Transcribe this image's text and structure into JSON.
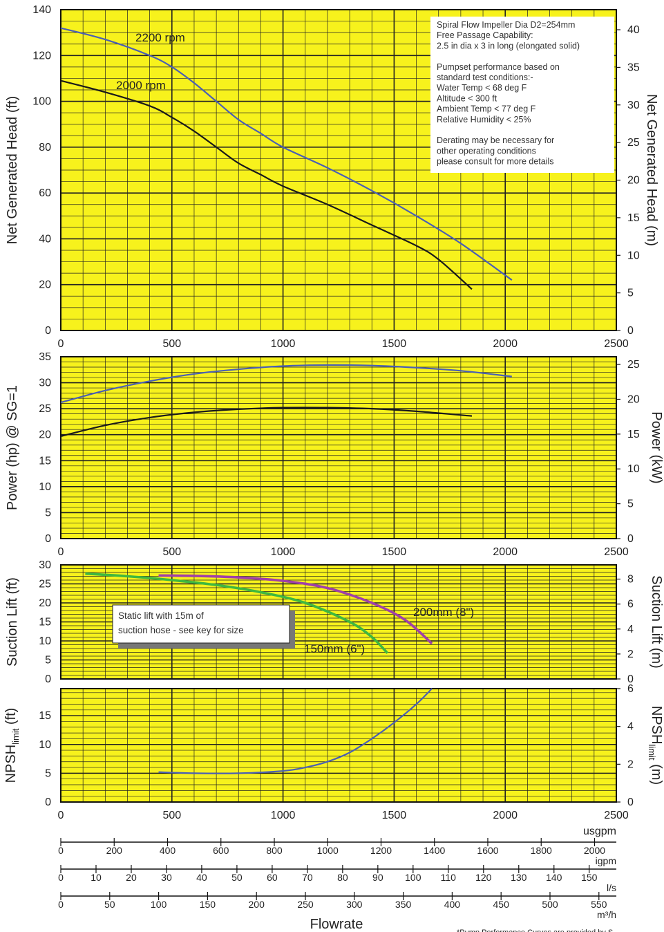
{
  "chart_data": [
    {
      "id": "head",
      "type": "line",
      "xlim": [
        0,
        2500
      ],
      "ylim": [
        0,
        140
      ],
      "y2lim": [
        0,
        42.67
      ],
      "x_ticks": [
        "0",
        "500",
        "1000",
        "1500",
        "2000",
        "2500"
      ],
      "y_ticks": [
        "0",
        "20",
        "40",
        "60",
        "80",
        "100",
        "120",
        "140"
      ],
      "y2_ticks": [
        "0",
        "5",
        "10",
        "15",
        "20",
        "25",
        "30",
        "35",
        "40"
      ],
      "ylabel": "Net Generated Head  (ft)",
      "y2label": "Net Generated Head (m)",
      "series": [
        {
          "name": "2200 rpm",
          "color": "#4a5fb5",
          "x": [
            0,
            200,
            400,
            500,
            600,
            700,
            800,
            900,
            1000,
            1200,
            1400,
            1600,
            1800,
            2030
          ],
          "y": [
            132,
            127,
            120,
            115,
            108,
            100,
            92,
            86,
            80,
            71,
            61,
            50,
            38,
            22
          ]
        },
        {
          "name": "2000 rpm",
          "color": "#1a1a1a",
          "x": [
            0,
            200,
            400,
            500,
            600,
            700,
            800,
            900,
            1000,
            1200,
            1400,
            1600,
            1700,
            1850
          ],
          "y": [
            109,
            104,
            98,
            93,
            87,
            80,
            73,
            68,
            63,
            55,
            46,
            37,
            31,
            18
          ]
        }
      ],
      "note_lines": [
        "Spiral Flow Impeller Dia D2=254mm",
        "Free Passage Capability:",
        "2.5 in dia x 3 in long (elongated solid)",
        "",
        "Pumpset performance based on",
        "standard test conditions:-",
        "Water Temp < 68 deg F",
        "Altitude < 300 ft",
        "Ambient Temp < 77 deg F",
        "Relative Humidity < 25%",
        "",
        "Derating may be necessary for",
        "other operating conditions",
        "please consult for more details"
      ]
    },
    {
      "id": "power",
      "type": "line",
      "xlim": [
        0,
        2500
      ],
      "ylim": [
        0,
        35
      ],
      "y2lim": [
        0,
        26.1
      ],
      "x_ticks": [
        "0",
        "500",
        "1000",
        "1500",
        "2000",
        "2500"
      ],
      "y_ticks": [
        "0",
        "5",
        "10",
        "15",
        "20",
        "25",
        "30",
        "35"
      ],
      "y2_ticks": [
        "0",
        "5",
        "10",
        "15",
        "20",
        "25"
      ],
      "ylabel": "Power (hp) @ SG=1",
      "y2label": "Power (kW)",
      "series": [
        {
          "name": "2200 rpm",
          "color": "#4a5fb5",
          "x": [
            0,
            200,
            400,
            600,
            800,
            1000,
            1200,
            1400,
            1600,
            1800,
            2030
          ],
          "y": [
            26.2,
            28.5,
            30.3,
            31.7,
            32.6,
            33.2,
            33.4,
            33.3,
            32.9,
            32.3,
            31.2
          ]
        },
        {
          "name": "2000 rpm",
          "color": "#1a1a1a",
          "x": [
            0,
            200,
            400,
            600,
            800,
            1000,
            1200,
            1400,
            1600,
            1850
          ],
          "y": [
            19.7,
            21.8,
            23.3,
            24.3,
            24.9,
            25.2,
            25.2,
            25.0,
            24.5,
            23.6
          ]
        }
      ]
    },
    {
      "id": "suction",
      "type": "line",
      "xlim": [
        0,
        2500
      ],
      "ylim": [
        0,
        30
      ],
      "y2lim": [
        0,
        9.14
      ],
      "y_ticks": [
        "0",
        "5",
        "10",
        "15",
        "20",
        "25",
        "30"
      ],
      "y2_ticks": [
        "0",
        "2",
        "4",
        "6",
        "8"
      ],
      "ylabel": "Suction Lift  (ft)",
      "y2label": "Suction Lift (m)",
      "series": [
        {
          "name": "200mm (8\")",
          "color": "#a040a8",
          "x": [
            440,
            600,
            800,
            1000,
            1200,
            1400,
            1550,
            1670
          ],
          "y": [
            27.2,
            27.1,
            26.7,
            25.8,
            23.9,
            20.0,
            15.5,
            9.3
          ]
        },
        {
          "name": "150mm (6\")",
          "color": "#3fb83f",
          "x": [
            110,
            300,
            500,
            700,
            900,
            1100,
            1300,
            1400,
            1470
          ],
          "y": [
            27.7,
            27.0,
            26.0,
            24.7,
            22.8,
            20.0,
            15.0,
            11.0,
            6.8
          ]
        }
      ],
      "note": "Static lift with 15m of suction hose - see key for size"
    },
    {
      "id": "npsh",
      "type": "line",
      "xlim": [
        0,
        2500
      ],
      "ylim": [
        0,
        19.7
      ],
      "y2lim": [
        0,
        6
      ],
      "x_ticks": [
        "0",
        "500",
        "1000",
        "1500",
        "2000",
        "2500"
      ],
      "y_ticks": [
        "0",
        "5",
        "10",
        "15"
      ],
      "y2_ticks": [
        "0",
        "2",
        "4",
        "6"
      ],
      "ylabel": "NPSH",
      "ylabel_sub": "limit",
      "ylabel_unit": " (ft)",
      "y2label": "NPSH",
      "y2label_sub": "limit",
      "y2label_unit": " (m)",
      "series": [
        {
          "name": "NPSH",
          "color": "#4a5fb5",
          "x": [
            440,
            600,
            800,
            1000,
            1100,
            1200,
            1300,
            1400,
            1500,
            1600,
            1670
          ],
          "y": [
            5.2,
            5.0,
            5.0,
            5.4,
            6.0,
            7.0,
            8.6,
            11.0,
            13.8,
            17.0,
            19.7
          ]
        }
      ],
      "x_unit": "usgpm"
    }
  ],
  "flow_scales": [
    {
      "unit": "igpm",
      "max": 2081.6,
      "ticks": [
        "0",
        "200",
        "400",
        "600",
        "800",
        "1000",
        "1200",
        "1400",
        "1600",
        "1800",
        "2000"
      ]
    },
    {
      "unit": "l/s",
      "max": 157.7,
      "ticks": [
        "0",
        "10",
        "20",
        "30",
        "40",
        "50",
        "60",
        "70",
        "80",
        "90",
        "100",
        "110",
        "120",
        "130",
        "140",
        "150"
      ]
    },
    {
      "unit": "m³/h",
      "max": 567.8,
      "ticks": [
        "0",
        "50",
        "100",
        "150",
        "200",
        "250",
        "300",
        "350",
        "400",
        "450",
        "500",
        "550"
      ]
    }
  ],
  "flowrate_label": "Flowrate",
  "footer": "*Pump Performance Curves are provided by S",
  "colors": {
    "grid_bg": "#f7f21c",
    "grid_line": "#222222",
    "frame": "#111111"
  }
}
